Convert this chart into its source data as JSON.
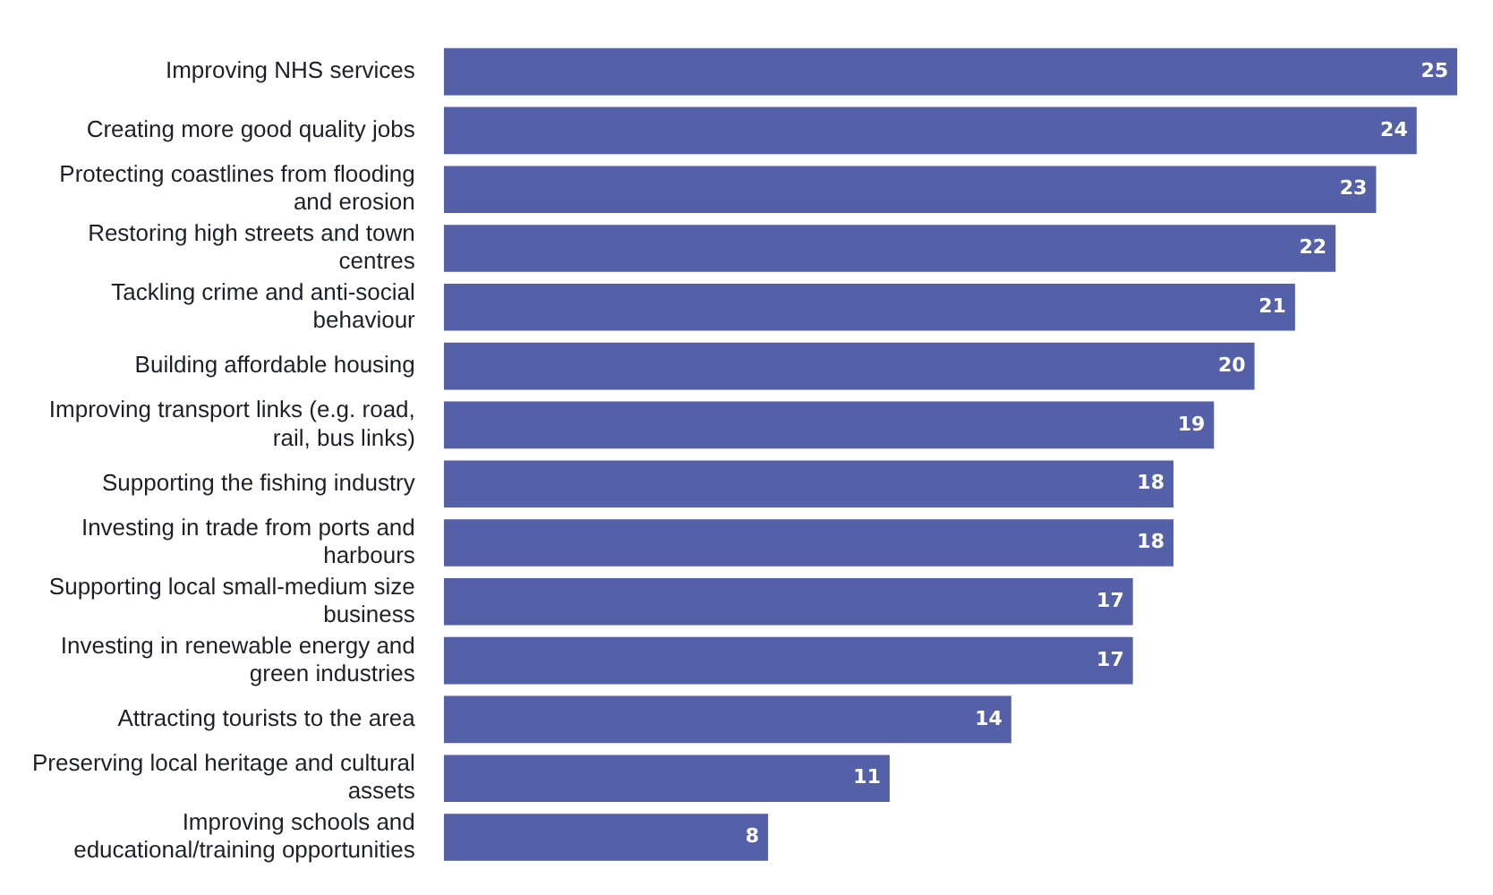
{
  "chart_data": {
    "type": "bar",
    "orientation": "horizontal",
    "categories": [
      "Improving NHS services",
      "Creating more good quality jobs",
      "Protecting coastlines from flooding and erosion",
      "Restoring high streets and town centres",
      "Tackling crime and anti-social behaviour",
      "Building affordable housing",
      "Improving transport links (e.g. road, rail, bus links)",
      "Supporting the fishing industry",
      "Investing in trade from ports and harbours",
      "Supporting local small-medium size business",
      "Investing in renewable energy and green industries",
      "Attracting tourists to the area",
      "Preserving local heritage and cultural assets",
      "Improving schools and educational/training opportunities"
    ],
    "values": [
      25,
      24,
      23,
      22,
      21,
      20,
      19,
      18,
      18,
      17,
      17,
      14,
      11,
      8
    ],
    "color": "#5461a8",
    "xlim": [
      0,
      25
    ],
    "tick_labels": "y",
    "data_labels": true
  }
}
